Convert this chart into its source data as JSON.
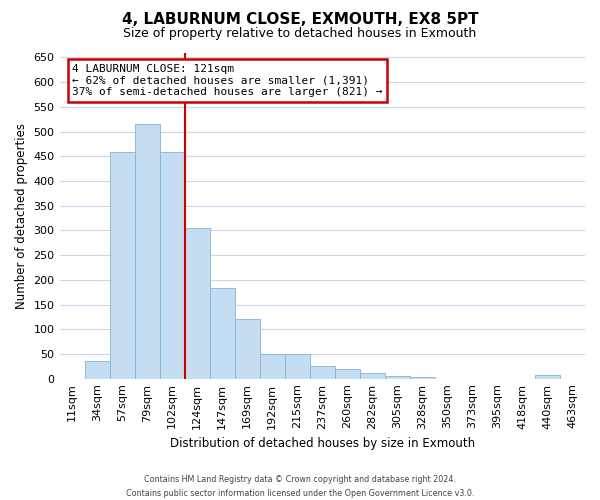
{
  "title": "4, LABURNUM CLOSE, EXMOUTH, EX8 5PT",
  "subtitle": "Size of property relative to detached houses in Exmouth",
  "xlabel": "Distribution of detached houses by size in Exmouth",
  "ylabel": "Number of detached properties",
  "bar_labels": [
    "11sqm",
    "34sqm",
    "57sqm",
    "79sqm",
    "102sqm",
    "124sqm",
    "147sqm",
    "169sqm",
    "192sqm",
    "215sqm",
    "237sqm",
    "260sqm",
    "282sqm",
    "305sqm",
    "328sqm",
    "350sqm",
    "373sqm",
    "395sqm",
    "418sqm",
    "440sqm",
    "463sqm"
  ],
  "bar_values": [
    0,
    35,
    458,
    515,
    458,
    305,
    183,
    120,
    50,
    50,
    25,
    20,
    12,
    5,
    3,
    0,
    0,
    0,
    0,
    8,
    0
  ],
  "bar_color": "#c5ddf0",
  "bar_edge_color": "#7fb4d8",
  "vline_color": "#cc0000",
  "ylim": [
    0,
    660
  ],
  "yticks": [
    0,
    50,
    100,
    150,
    200,
    250,
    300,
    350,
    400,
    450,
    500,
    550,
    600,
    650
  ],
  "annotation_title": "4 LABURNUM CLOSE: 121sqm",
  "annotation_line1": "← 62% of detached houses are smaller (1,391)",
  "annotation_line2": "37% of semi-detached houses are larger (821) →",
  "annotation_box_color": "#ffffff",
  "annotation_box_edge": "#cc0000",
  "footer_line1": "Contains HM Land Registry data © Crown copyright and database right 2024.",
  "footer_line2": "Contains public sector information licensed under the Open Government Licence v3.0.",
  "background_color": "#ffffff",
  "grid_color": "#c8d8ea"
}
